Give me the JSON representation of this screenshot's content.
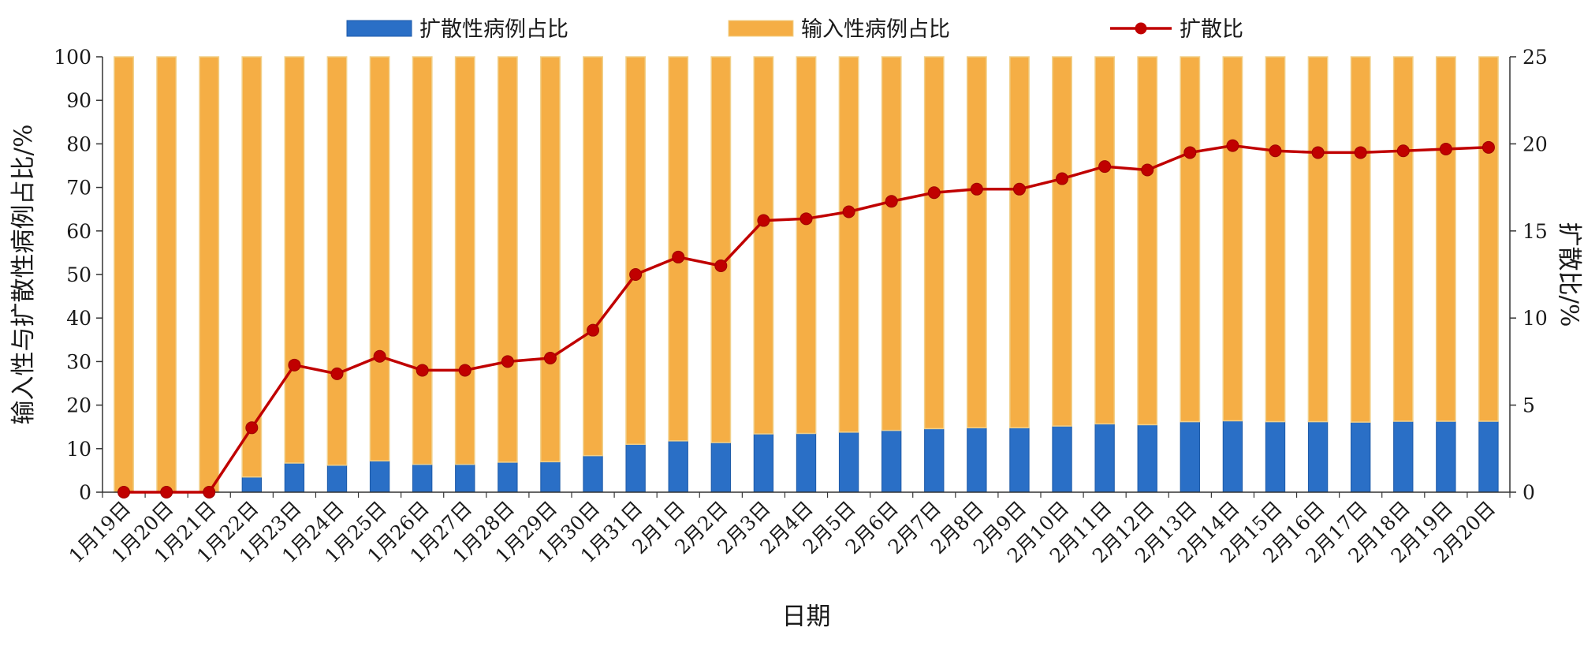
{
  "chart_data": {
    "type": "bar+line",
    "stacked": true,
    "xlabel": "日期",
    "ylabel_left": "输入性与扩散性病例占比/%",
    "ylabel_right": "扩散比/%",
    "ylim_left": [
      0,
      100
    ],
    "ylim_right": [
      0,
      25
    ],
    "yticks_left": [
      "0",
      "10",
      "20",
      "30",
      "40",
      "50",
      "60",
      "70",
      "80",
      "90",
      "100"
    ],
    "yticks_right": [
      "0",
      "5",
      "10",
      "15",
      "20",
      "25"
    ],
    "grid": false,
    "legend_position": "top",
    "categories": [
      "1月19日",
      "1月20日",
      "1月21日",
      "1月22日",
      "1月23日",
      "1月24日",
      "1月25日",
      "1月26日",
      "1月27日",
      "1月28日",
      "1月29日",
      "1月30日",
      "1月31日",
      "2月1日",
      "2月2日",
      "2月3日",
      "2月4日",
      "2月5日",
      "2月6日",
      "2月7日",
      "2月8日",
      "2月9日",
      "2月10日",
      "2月11日",
      "2月12日",
      "2月13日",
      "2月14日",
      "2月15日",
      "2月16日",
      "2月17日",
      "2月18日",
      "2月19日",
      "2月20日"
    ],
    "series": [
      {
        "name": "扩散性病例占比",
        "type": "bar",
        "axis": "left",
        "color": "#2a6fc6",
        "values": [
          0,
          0,
          0,
          3.5,
          6.7,
          6.2,
          7.2,
          6.4,
          6.4,
          6.9,
          7.0,
          8.4,
          11.0,
          11.8,
          11.4,
          13.4,
          13.5,
          13.8,
          14.2,
          14.6,
          14.8,
          14.8,
          15.2,
          15.7,
          15.5,
          16.2,
          16.4,
          16.2,
          16.2,
          16.1,
          16.3,
          16.3,
          16.3
        ]
      },
      {
        "name": "输入性病例占比",
        "type": "bar",
        "axis": "left",
        "color": "#f5ae45",
        "values": [
          100,
          100,
          100,
          96.5,
          93.3,
          93.8,
          92.8,
          93.6,
          93.6,
          93.1,
          93.0,
          91.6,
          89.0,
          88.2,
          88.6,
          86.6,
          86.5,
          86.2,
          85.8,
          85.4,
          85.2,
          85.2,
          84.8,
          84.3,
          84.5,
          83.8,
          83.6,
          83.8,
          83.8,
          83.9,
          83.7,
          83.7,
          83.7
        ]
      },
      {
        "name": "扩散比",
        "type": "line",
        "axis": "right",
        "color": "#c00000",
        "values": [
          0,
          0,
          0,
          3.7,
          7.3,
          6.8,
          7.8,
          7.0,
          7.0,
          7.5,
          7.7,
          9.3,
          12.5,
          13.5,
          13.0,
          15.6,
          15.7,
          16.1,
          16.7,
          17.2,
          17.4,
          17.4,
          18.0,
          18.7,
          18.5,
          19.5,
          19.9,
          19.6,
          19.5,
          19.5,
          19.6,
          19.7,
          19.8
        ]
      }
    ]
  }
}
